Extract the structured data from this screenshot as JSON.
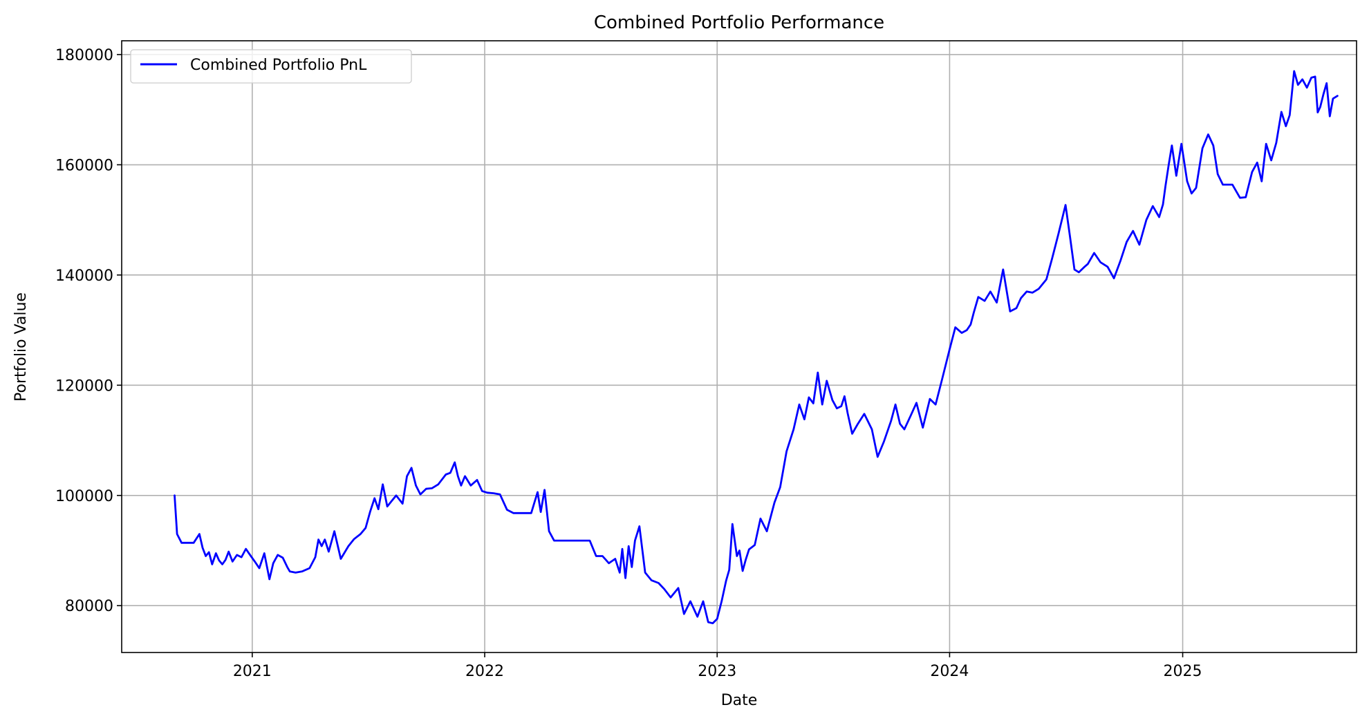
{
  "chart_data": {
    "type": "line",
    "title": "Combined Portfolio Performance",
    "xlabel": "Date",
    "ylabel": "Portfolio Value",
    "xlim": [
      "2020-06-10",
      "2025-10-01"
    ],
    "ylim": [
      71500,
      182500
    ],
    "x_ticks": [
      {
        "date": "2021-01-01",
        "label": "2021"
      },
      {
        "date": "2022-01-01",
        "label": "2022"
      },
      {
        "date": "2023-01-01",
        "label": "2023"
      },
      {
        "date": "2024-01-01",
        "label": "2024"
      },
      {
        "date": "2025-01-01",
        "label": "2025"
      }
    ],
    "y_ticks": [
      80000,
      100000,
      120000,
      140000,
      160000,
      180000
    ],
    "grid": true,
    "legend": {
      "position": "top-left"
    },
    "colors": {
      "line": "#0000ff",
      "grid": "#b0b0b0",
      "axis": "#000000"
    },
    "series": [
      {
        "name": "Combined Portfolio PnL",
        "x": [
          "2020-09-01",
          "2020-09-05",
          "2020-09-12",
          "2020-09-20",
          "2020-10-01",
          "2020-10-10",
          "2020-10-15",
          "2020-10-20",
          "2020-10-25",
          "2020-10-30",
          "2020-11-05",
          "2020-11-10",
          "2020-11-15",
          "2020-11-20",
          "2020-11-25",
          "2020-12-01",
          "2020-12-08",
          "2020-12-15",
          "2020-12-22",
          "2020-12-28",
          "2021-01-05",
          "2021-01-12",
          "2021-01-20",
          "2021-01-28",
          "2021-02-03",
          "2021-02-10",
          "2021-02-18",
          "2021-02-25",
          "2021-03-01",
          "2021-03-10",
          "2021-03-20",
          "2021-04-01",
          "2021-04-10",
          "2021-04-15",
          "2021-04-20",
          "2021-04-25",
          "2021-05-01",
          "2021-05-10",
          "2021-05-20",
          "2021-06-01",
          "2021-06-10",
          "2021-06-20",
          "2021-06-28",
          "2021-07-05",
          "2021-07-12",
          "2021-07-18",
          "2021-07-25",
          "2021-08-01",
          "2021-08-08",
          "2021-08-15",
          "2021-08-25",
          "2021-09-01",
          "2021-09-08",
          "2021-09-15",
          "2021-09-22",
          "2021-10-01",
          "2021-10-10",
          "2021-10-20",
          "2021-11-01",
          "2021-11-08",
          "2021-11-15",
          "2021-11-20",
          "2021-11-25",
          "2021-12-01",
          "2021-12-10",
          "2021-12-20",
          "2021-12-28",
          "2022-01-05",
          "2022-01-15",
          "2022-01-25",
          "2022-02-05",
          "2022-02-15",
          "2022-02-25",
          "2022-03-05",
          "2022-03-15",
          "2022-03-20",
          "2022-03-25",
          "2022-03-30",
          "2022-04-05",
          "2022-04-12",
          "2022-04-20",
          "2022-05-01",
          "2022-05-15",
          "2022-06-01",
          "2022-06-15",
          "2022-06-25",
          "2022-07-05",
          "2022-07-15",
          "2022-07-25",
          "2022-08-01",
          "2022-08-05",
          "2022-08-10",
          "2022-08-15",
          "2022-08-20",
          "2022-08-25",
          "2022-09-01",
          "2022-09-10",
          "2022-09-20",
          "2022-10-01",
          "2022-10-10",
          "2022-10-20",
          "2022-11-01",
          "2022-11-10",
          "2022-11-20",
          "2022-12-01",
          "2022-12-10",
          "2022-12-18",
          "2022-12-25",
          "2023-01-01",
          "2023-01-08",
          "2023-01-15",
          "2023-01-20",
          "2023-01-25",
          "2023-02-01",
          "2023-02-05",
          "2023-02-10",
          "2023-02-15",
          "2023-02-20",
          "2023-03-01",
          "2023-03-10",
          "2023-03-20",
          "2023-04-01",
          "2023-04-10",
          "2023-04-20",
          "2023-05-01",
          "2023-05-10",
          "2023-05-18",
          "2023-05-25",
          "2023-06-01",
          "2023-06-08",
          "2023-06-15",
          "2023-06-22",
          "2023-07-01",
          "2023-07-08",
          "2023-07-15",
          "2023-07-20",
          "2023-07-25",
          "2023-08-01",
          "2023-08-10",
          "2023-08-20",
          "2023-09-01",
          "2023-09-10",
          "2023-09-20",
          "2023-10-01",
          "2023-10-08",
          "2023-10-15",
          "2023-10-22",
          "2023-11-01",
          "2023-11-10",
          "2023-11-20",
          "2023-12-01",
          "2023-12-10",
          "2023-12-20",
          "2024-01-01",
          "2024-01-10",
          "2024-01-20",
          "2024-01-28",
          "2024-02-03",
          "2024-02-08",
          "2024-02-15",
          "2024-02-25",
          "2024-03-05",
          "2024-03-15",
          "2024-03-25",
          "2024-04-05",
          "2024-04-15",
          "2024-04-22",
          "2024-05-01",
          "2024-05-10",
          "2024-05-20",
          "2024-06-01",
          "2024-06-10",
          "2024-06-20",
          "2024-07-01",
          "2024-07-08",
          "2024-07-15",
          "2024-07-22",
          "2024-07-30",
          "2024-08-05",
          "2024-08-15",
          "2024-08-25",
          "2024-09-05",
          "2024-09-15",
          "2024-09-25",
          "2024-10-05",
          "2024-10-15",
          "2024-10-25",
          "2024-11-05",
          "2024-11-15",
          "2024-11-25",
          "2024-12-01",
          "2024-12-05",
          "2024-12-10",
          "2024-12-15",
          "2024-12-22",
          "2024-12-30",
          "2025-01-08",
          "2025-01-15",
          "2025-01-22",
          "2025-02-01",
          "2025-02-10",
          "2025-02-18",
          "2025-02-25",
          "2025-03-05",
          "2025-03-12",
          "2025-03-20",
          "2025-04-01",
          "2025-04-10",
          "2025-04-20",
          "2025-04-28",
          "2025-05-05",
          "2025-05-12",
          "2025-05-20",
          "2025-05-28",
          "2025-06-05",
          "2025-06-12",
          "2025-06-18",
          "2025-06-25",
          "2025-07-01",
          "2025-07-08",
          "2025-07-15",
          "2025-07-22",
          "2025-07-28",
          "2025-08-01",
          "2025-08-05",
          "2025-08-10",
          "2025-08-15",
          "2025-08-20",
          "2025-08-25",
          "2025-09-01"
        ],
        "y": [
          100000,
          93000,
          91400,
          91400,
          91400,
          93000,
          90500,
          89000,
          89700,
          87500,
          89500,
          88200,
          87500,
          88300,
          89800,
          88000,
          89200,
          88800,
          90300,
          89300,
          88000,
          86800,
          89500,
          84800,
          87700,
          89200,
          88700,
          87000,
          86200,
          86000,
          86200,
          86800,
          88800,
          92000,
          90800,
          92000,
          89800,
          93500,
          88500,
          90800,
          92100,
          93000,
          94100,
          97000,
          99500,
          97500,
          102000,
          98000,
          99000,
          100000,
          98500,
          103500,
          105000,
          101800,
          100200,
          101200,
          101300,
          102000,
          103800,
          104100,
          106000,
          103500,
          101800,
          103500,
          101800,
          102800,
          100800,
          100500,
          100400,
          100200,
          97400,
          96800,
          96800,
          96800,
          96800,
          98700,
          100600,
          97000,
          101000,
          93500,
          91800,
          91800,
          91800,
          91800,
          91800,
          89000,
          89000,
          87700,
          88500,
          86000,
          90300,
          85000,
          90800,
          87000,
          91800,
          94400,
          86000,
          84600,
          84100,
          83000,
          81500,
          83200,
          78500,
          80800,
          78000,
          80800,
          77000,
          76800,
          77600,
          80800,
          84500,
          86500,
          94800,
          89000,
          90000,
          86300,
          88400,
          90200,
          91000,
          95800,
          93500,
          98700,
          101500,
          108000,
          112000,
          116500,
          113800,
          117800,
          116700,
          122300,
          116500,
          120800,
          117300,
          115800,
          116200,
          118000,
          114900,
          111200,
          113000,
          114800,
          112000,
          107000,
          109800,
          113500,
          116500,
          113000,
          112000,
          114500,
          116800,
          112300,
          117500,
          116500,
          121000,
          126500,
          130500,
          129500,
          130000,
          131000,
          133200,
          136000,
          135300,
          137000,
          135000,
          141000,
          133400,
          134000,
          135800,
          137000,
          136800,
          137500,
          139200,
          143000,
          147500,
          152700,
          147000,
          141000,
          140500,
          141400,
          142000,
          144000,
          142300,
          141500,
          139400,
          142500,
          146000,
          148000,
          145500,
          150000,
          152500,
          150500,
          152800,
          156200,
          160000,
          163500,
          158000,
          163800,
          157000,
          154800,
          155800,
          163000,
          165500,
          163500,
          158300,
          156400,
          156400,
          156400,
          154000,
          154100,
          158700,
          160400,
          157000,
          163800,
          160800,
          164000,
          169600,
          167000,
          169000,
          177000,
          174500,
          175500,
          174000,
          175800,
          176000,
          169500,
          170500,
          172800,
          174800,
          168800,
          172000,
          172500
        ]
      }
    ]
  }
}
